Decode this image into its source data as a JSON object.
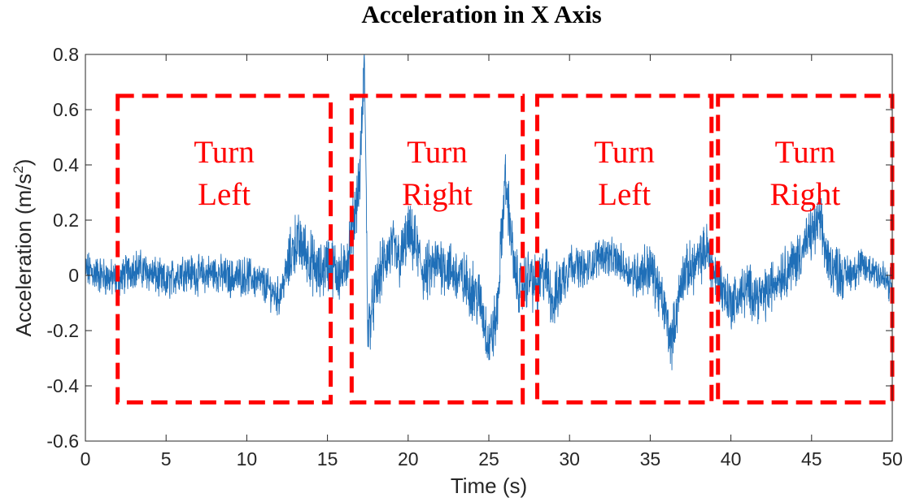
{
  "chart_data": {
    "type": "line",
    "title": "Acceleration in X Axis",
    "xlabel": "Time (s)",
    "ylabel": "Acceleration  (m/s",
    "ylabel_superscript": "2",
    "ylabel_suffix": ")",
    "xlim": [
      0,
      50
    ],
    "ylim": [
      -0.6,
      0.8
    ],
    "xticks": [
      0,
      5,
      10,
      15,
      20,
      25,
      30,
      35,
      40,
      45,
      50
    ],
    "yticks": [
      -0.6,
      -0.4,
      -0.2,
      0,
      0.2,
      0.4,
      0.6,
      0.8
    ],
    "ytick_labels": [
      "-0.6",
      "-0.4",
      "-0.2",
      "0",
      "0.2",
      "0.4",
      "0.6",
      "0.8"
    ],
    "grid": false,
    "series_color": "#1f6fb8",
    "series": [
      {
        "x": [
          0,
          1,
          2,
          3,
          4,
          5,
          6,
          7,
          8,
          9,
          10,
          11,
          12,
          12.5,
          13,
          13.5,
          14,
          14.5,
          15,
          15.5,
          16,
          16.5,
          17,
          17.3,
          17.5,
          18,
          18.5,
          19,
          19.5,
          20,
          20.5,
          21,
          22,
          23,
          24,
          24.5,
          25,
          25.5,
          26,
          26.3,
          26.6,
          27,
          27.5,
          28,
          28.5,
          29,
          30,
          31,
          32,
          33,
          34,
          35,
          35.5,
          36,
          36.3,
          37,
          38,
          38.5,
          39,
          39.5,
          40,
          41,
          42,
          43,
          44,
          45,
          45.5,
          46,
          47,
          48,
          49,
          50
        ],
        "y": [
          0.02,
          0.0,
          -0.02,
          0.03,
          0.01,
          -0.03,
          0.02,
          0.0,
          0.01,
          -0.01,
          0.0,
          -0.03,
          -0.08,
          0.02,
          0.12,
          0.1,
          0.05,
          0.0,
          0.05,
          0.02,
          0.0,
          0.15,
          0.35,
          0.78,
          -0.2,
          -0.05,
          0.05,
          0.1,
          0.05,
          0.15,
          0.1,
          0.0,
          0.05,
          0.0,
          -0.05,
          -0.1,
          -0.25,
          -0.15,
          0.35,
          0.2,
          0.0,
          -0.05,
          0.0,
          -0.05,
          0.02,
          -0.1,
          0.05,
          0.02,
          0.08,
          0.05,
          0.0,
          0.03,
          -0.05,
          -0.15,
          -0.25,
          0.0,
          0.05,
          0.1,
          0.0,
          -0.05,
          -0.1,
          -0.05,
          -0.08,
          0.0,
          0.05,
          0.15,
          0.2,
          0.05,
          0.0,
          0.03,
          0.02,
          -0.05
        ]
      }
    ],
    "annotations": [
      {
        "label_line1": "Turn",
        "label_line2": "Left",
        "x0": 2.0,
        "x1": 15.2,
        "y0": -0.46,
        "y1": 0.65
      },
      {
        "label_line1": "Turn",
        "label_line2": "Right",
        "x0": 16.5,
        "x1": 27.1,
        "y0": -0.46,
        "y1": 0.65
      },
      {
        "label_line1": "Turn",
        "label_line2": "Left",
        "x0": 28.0,
        "x1": 38.8,
        "y0": -0.46,
        "y1": 0.65
      },
      {
        "label_line1": "Turn",
        "label_line2": "Right",
        "x0": 39.2,
        "x1": 50.0,
        "y0": -0.46,
        "y1": 0.65
      }
    ],
    "annotation_color": "#ff0000"
  }
}
